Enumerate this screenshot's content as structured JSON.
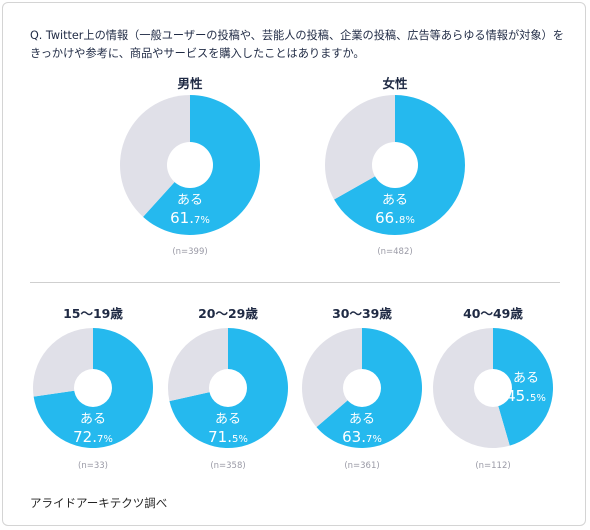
{
  "question": "Q. Twitter上の情報（一般ユーザーの投稿や、芸能人の投稿、企業の投稿、広告等あらゆる情報が対象）をきっかけや参考に、商品やサービスを購入したことはありますか。",
  "source": "アライドアーキテクツ調べ",
  "colors": {
    "yes": "#25b9ee",
    "no": "#e0e0e8",
    "label_text": "#ffffff"
  },
  "chart_data": [
    {
      "type": "pie",
      "title": "男性",
      "n": "(n=399)",
      "label": "ある",
      "value_main": "61.",
      "value_small": "7%",
      "slices": [
        {
          "name": "ある",
          "value": 61.7
        },
        {
          "name": "",
          "value": 38.3
        }
      ]
    },
    {
      "type": "pie",
      "title": "女性",
      "n": "(n=482)",
      "label": "ある",
      "value_main": "66.",
      "value_small": "8%",
      "slices": [
        {
          "name": "ある",
          "value": 66.8
        },
        {
          "name": "",
          "value": 33.2
        }
      ]
    },
    {
      "type": "pie",
      "title": "15〜19歳",
      "n": "(n=33)",
      "label": "ある",
      "value_main": "72.",
      "value_small": "7%",
      "slices": [
        {
          "name": "ある",
          "value": 72.7
        },
        {
          "name": "",
          "value": 27.3
        }
      ]
    },
    {
      "type": "pie",
      "title": "20〜29歳",
      "n": "(n=358)",
      "label": "ある",
      "value_main": "71.",
      "value_small": "5%",
      "slices": [
        {
          "name": "ある",
          "value": 71.5
        },
        {
          "name": "",
          "value": 28.5
        }
      ]
    },
    {
      "type": "pie",
      "title": "30〜39歳",
      "n": "(n=361)",
      "label": "ある",
      "value_main": "63.",
      "value_small": "7%",
      "slices": [
        {
          "name": "ある",
          "value": 63.7
        },
        {
          "name": "",
          "value": 36.3
        }
      ]
    },
    {
      "type": "pie",
      "title": "40〜49歳",
      "n": "(n=112)",
      "label": "ある",
      "value_main": "45.",
      "value_small": "5%",
      "slices": [
        {
          "name": "ある",
          "value": 45.5
        },
        {
          "name": "",
          "value": 54.5
        }
      ]
    }
  ]
}
